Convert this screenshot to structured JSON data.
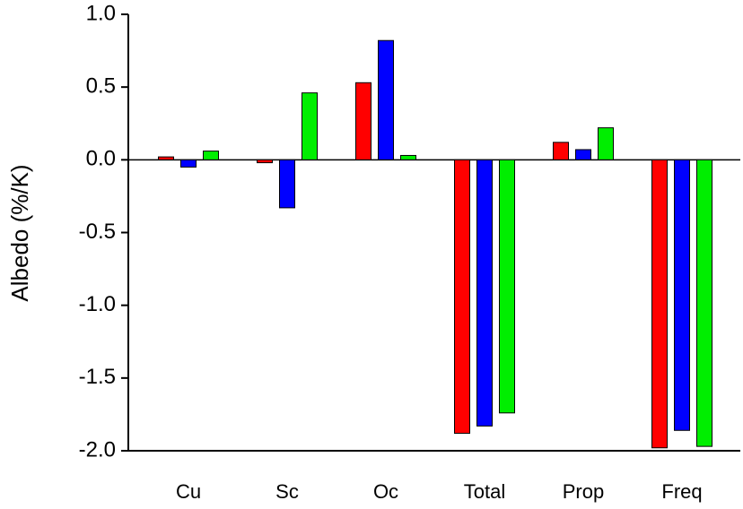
{
  "chart_data": {
    "type": "bar",
    "y_label": "Albedo (%/K)",
    "categories": [
      "Cu",
      "Sc",
      "Oc",
      "Total",
      "Prop",
      "Freq"
    ],
    "series": [
      {
        "color": "#ff0000",
        "values": [
          0.02,
          -0.02,
          0.53,
          -1.88,
          0.12,
          -1.98
        ]
      },
      {
        "color": "#0000ff",
        "values": [
          -0.05,
          -0.33,
          0.82,
          -1.83,
          0.07,
          -1.86
        ]
      },
      {
        "color": "#00ee00",
        "values": [
          0.06,
          0.46,
          0.03,
          -1.74,
          0.22,
          -1.97
        ]
      }
    ],
    "ylim": [
      -2.0,
      1.0
    ],
    "yticks": [
      {
        "value": -2.0,
        "label": "-2.0"
      },
      {
        "value": -1.5,
        "label": "-1.5"
      },
      {
        "value": -1.0,
        "label": "-1.0"
      },
      {
        "value": -0.5,
        "label": "-0.5"
      },
      {
        "value": 0.0,
        "label": "0.0"
      },
      {
        "value": 0.5,
        "label": "0.5"
      },
      {
        "value": 1.0,
        "label": "1.0"
      }
    ],
    "zero_line": true
  }
}
